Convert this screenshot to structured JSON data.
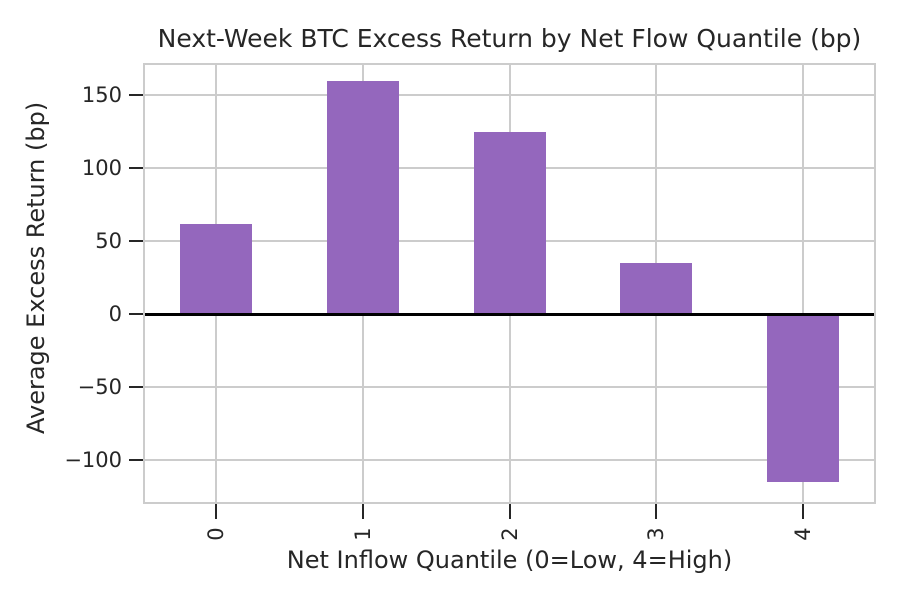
{
  "chart_data": {
    "type": "bar",
    "title": "Next-Week BTC Excess Return by Net Flow Quantile (bp)",
    "xlabel": "Net Inflow Quantile (0=Low, 4=High)",
    "ylabel": "Average Excess Return (bp)",
    "categories": [
      "0",
      "1",
      "2",
      "3",
      "4"
    ],
    "values": [
      62,
      160,
      125,
      35,
      -115
    ],
    "yticks": [
      150,
      100,
      50,
      0,
      -50,
      -100
    ],
    "ylim": [
      -130,
      172
    ],
    "grid": true,
    "legend": false,
    "bar_width_fraction": 0.49,
    "style": {
      "bar_color": "#9467bd",
      "grid_color": "#cccccc",
      "spine_color": "#cccccc",
      "zero_line_color": "#000000",
      "text_color": "#262626",
      "tick_color": "#262626",
      "background_color": "#ffffff"
    }
  }
}
